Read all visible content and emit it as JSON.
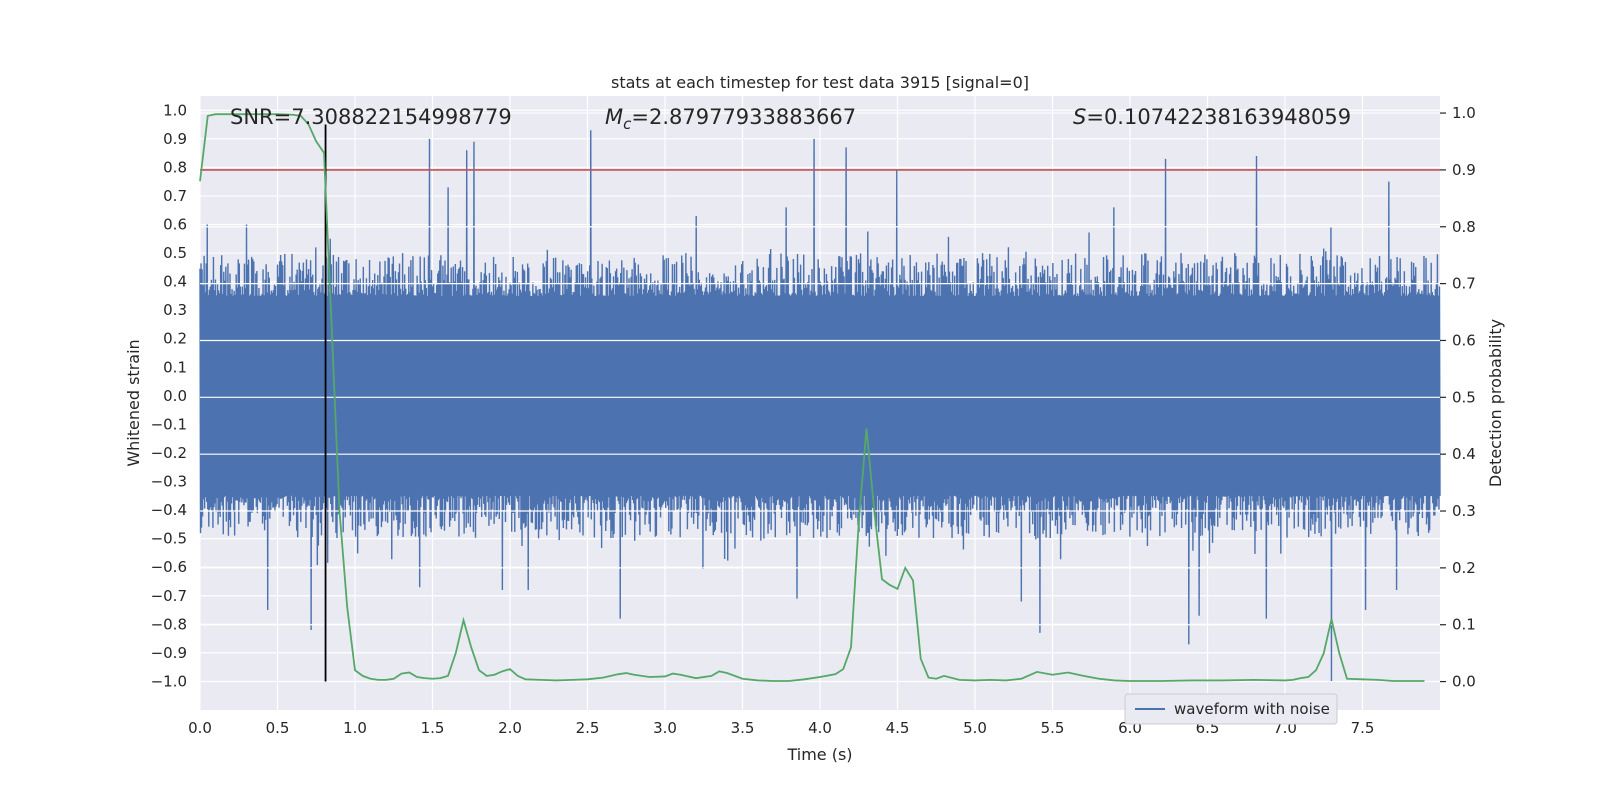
{
  "chart_data": {
    "type": "line",
    "title": "stats at each timestep for test data 3915 [signal=0]",
    "xlabel": "Time (s)",
    "ylabel_left": "Whitened strain",
    "ylabel_right": "Detection probability",
    "xlim": [
      0.0,
      8.0
    ],
    "ylim_left": [
      -1.1,
      1.05
    ],
    "ylim_right": [
      -0.05,
      1.03
    ],
    "xticks": [
      "0.0",
      "0.5",
      "1.0",
      "1.5",
      "2.0",
      "2.5",
      "3.0",
      "3.5",
      "4.0",
      "4.5",
      "5.0",
      "5.5",
      "6.0",
      "6.5",
      "7.0",
      "7.5"
    ],
    "xtick_values": [
      0.0,
      0.5,
      1.0,
      1.5,
      2.0,
      2.5,
      3.0,
      3.5,
      4.0,
      4.5,
      5.0,
      5.5,
      6.0,
      6.5,
      7.0,
      7.5
    ],
    "yticks_left": [
      "−1.0",
      "−0.9",
      "−0.8",
      "−0.7",
      "−0.6",
      "−0.5",
      "−0.4",
      "−0.3",
      "−0.2",
      "−0.1",
      "0.0",
      "0.1",
      "0.2",
      "0.3",
      "0.4",
      "0.5",
      "0.6",
      "0.7",
      "0.8",
      "0.9",
      "1.0"
    ],
    "ytick_values_left": [
      -1.0,
      -0.9,
      -0.8,
      -0.7,
      -0.6,
      -0.5,
      -0.4,
      -0.3,
      -0.2,
      -0.1,
      0.0,
      0.1,
      0.2,
      0.3,
      0.4,
      0.5,
      0.6,
      0.7,
      0.8,
      0.9,
      1.0
    ],
    "yticks_right": [
      "0.0",
      "0.1",
      "0.2",
      "0.3",
      "0.4",
      "0.5",
      "0.6",
      "0.7",
      "0.8",
      "0.9",
      "1.0"
    ],
    "ytick_values_right": [
      0.0,
      0.1,
      0.2,
      0.3,
      0.4,
      0.5,
      0.6,
      0.7,
      0.8,
      0.9,
      1.0
    ],
    "grid": true,
    "legend": {
      "placement": "lower-right",
      "entries": [
        "waveform with noise"
      ]
    },
    "annotations": {
      "snr": "SNR=7.308822154998779",
      "mc_symbol": "M",
      "mc_subscript": "c",
      "mc_value": "=2.87977933883667",
      "s_symbol": "S",
      "s_value": "=0.10742238163948059"
    },
    "threshold": {
      "axis": "right",
      "value": 0.9,
      "color": "#c44e52"
    },
    "vertical_marker": {
      "x": 0.81,
      "y_from": -1.0,
      "y_to": 0.95,
      "color": "#000000"
    },
    "waveform": {
      "name": "waveform with noise",
      "color": "#4c72b0",
      "x_range": [
        0.0,
        8.0
      ],
      "core_amplitude": 0.35,
      "typical_peak": 0.5,
      "peaks_positive": [
        [
          0.05,
          0.6
        ],
        [
          0.3,
          0.6
        ],
        [
          0.75,
          0.52
        ],
        [
          0.84,
          0.55
        ],
        [
          1.48,
          0.9
        ],
        [
          1.6,
          0.73
        ],
        [
          1.72,
          0.86
        ],
        [
          1.77,
          0.89
        ],
        [
          2.52,
          0.93
        ],
        [
          3.2,
          0.63
        ],
        [
          3.78,
          0.66
        ],
        [
          3.96,
          0.9
        ],
        [
          4.17,
          0.87
        ],
        [
          4.5,
          0.79
        ],
        [
          5.9,
          0.66
        ],
        [
          6.23,
          0.83
        ],
        [
          6.82,
          0.84
        ],
        [
          7.3,
          0.59
        ],
        [
          7.67,
          0.75
        ]
      ],
      "peaks_negative": [
        [
          0.44,
          -0.75
        ],
        [
          0.72,
          -0.82
        ],
        [
          1.42,
          -0.67
        ],
        [
          1.95,
          -0.68
        ],
        [
          2.12,
          -0.68
        ],
        [
          2.71,
          -0.78
        ],
        [
          3.85,
          -0.71
        ],
        [
          5.3,
          -0.72
        ],
        [
          5.42,
          -0.83
        ],
        [
          6.38,
          -0.87
        ],
        [
          6.45,
          -0.77
        ],
        [
          6.88,
          -0.78
        ],
        [
          7.3,
          -1.0
        ],
        [
          7.52,
          -0.75
        ],
        [
          7.72,
          -0.68
        ]
      ]
    },
    "detection_probability": {
      "color": "#55a868",
      "x": [
        0.0,
        0.05,
        0.1,
        0.2,
        0.3,
        0.4,
        0.5,
        0.6,
        0.65,
        0.7,
        0.75,
        0.8,
        0.85,
        0.9,
        0.95,
        1.0,
        1.05,
        1.1,
        1.15,
        1.2,
        1.25,
        1.3,
        1.35,
        1.4,
        1.45,
        1.5,
        1.55,
        1.6,
        1.65,
        1.7,
        1.75,
        1.8,
        1.85,
        1.9,
        1.95,
        2.0,
        2.05,
        2.1,
        2.2,
        2.3,
        2.4,
        2.5,
        2.6,
        2.7,
        2.75,
        2.8,
        2.9,
        3.0,
        3.05,
        3.1,
        3.2,
        3.3,
        3.35,
        3.4,
        3.5,
        3.6,
        3.7,
        3.8,
        3.9,
        4.0,
        4.1,
        4.15,
        4.2,
        4.25,
        4.3,
        4.35,
        4.4,
        4.45,
        4.5,
        4.55,
        4.6,
        4.65,
        4.7,
        4.75,
        4.8,
        4.9,
        5.0,
        5.1,
        5.2,
        5.3,
        5.4,
        5.5,
        5.6,
        5.7,
        5.8,
        5.9,
        6.0,
        6.2,
        6.4,
        6.6,
        6.8,
        7.0,
        7.05,
        7.1,
        7.15,
        7.2,
        7.25,
        7.3,
        7.35,
        7.4,
        7.5,
        7.6,
        7.7,
        7.9
      ],
      "y": [
        0.88,
        0.995,
        0.998,
        0.998,
        0.998,
        0.998,
        0.998,
        0.997,
        0.995,
        0.98,
        0.95,
        0.93,
        0.62,
        0.3,
        0.13,
        0.02,
        0.01,
        0.005,
        0.003,
        0.003,
        0.005,
        0.014,
        0.016,
        0.008,
        0.006,
        0.005,
        0.006,
        0.01,
        0.05,
        0.108,
        0.06,
        0.02,
        0.01,
        0.012,
        0.018,
        0.022,
        0.01,
        0.004,
        0.003,
        0.002,
        0.003,
        0.004,
        0.007,
        0.013,
        0.015,
        0.012,
        0.008,
        0.009,
        0.014,
        0.012,
        0.006,
        0.01,
        0.018,
        0.015,
        0.005,
        0.002,
        0.001,
        0.001,
        0.004,
        0.008,
        0.013,
        0.022,
        0.06,
        0.28,
        0.445,
        0.3,
        0.18,
        0.17,
        0.163,
        0.2,
        0.178,
        0.04,
        0.007,
        0.005,
        0.01,
        0.003,
        0.002,
        0.003,
        0.002,
        0.005,
        0.017,
        0.012,
        0.016,
        0.01,
        0.005,
        0.002,
        0.001,
        0.001,
        0.002,
        0.002,
        0.003,
        0.002,
        0.003,
        0.006,
        0.008,
        0.02,
        0.05,
        0.11,
        0.05,
        0.005,
        0.004,
        0.003,
        0.001,
        0.001
      ]
    }
  }
}
